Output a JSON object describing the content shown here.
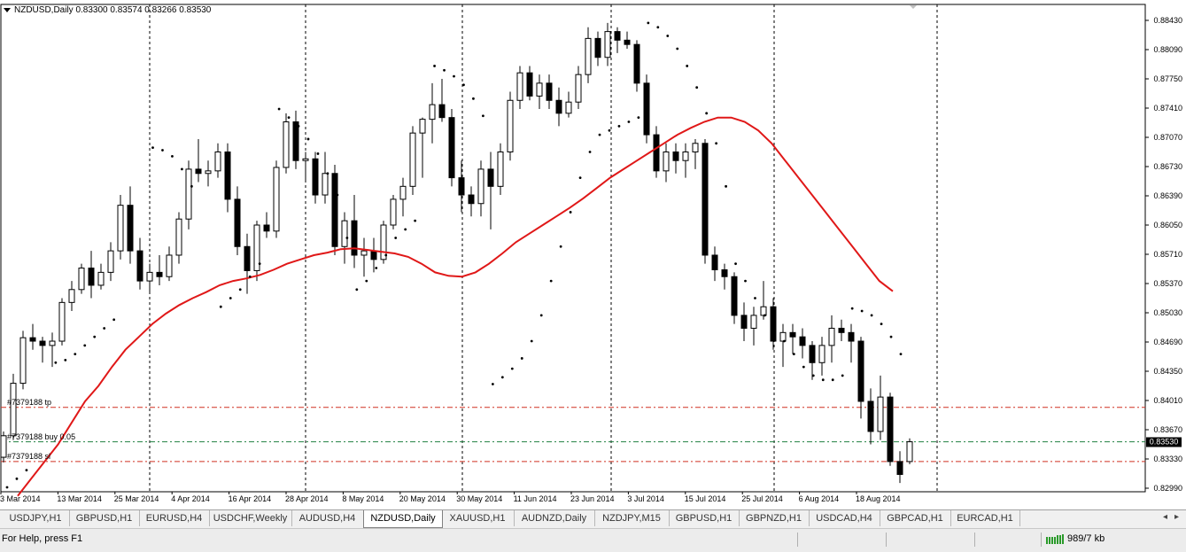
{
  "chart": {
    "symbol_title": "NZDUSD,Daily  0.83300 0.83574 0.83266 0.83530",
    "price_scale": [
      "0.88430",
      "0.88090",
      "0.87750",
      "0.87410",
      "0.87070",
      "0.86730",
      "0.86390",
      "0.86050",
      "0.85710",
      "0.85370",
      "0.85030",
      "0.84690",
      "0.84350",
      "0.84010",
      "0.83670",
      "0.83330",
      "0.82990"
    ],
    "current_price": "0.83530",
    "date_labels": [
      "3 Mar 2014",
      "13 Mar 2014",
      "25 Mar 2014",
      "4 Apr 2014",
      "16 Apr 2014",
      "28 Apr 2014",
      "8 May 2014",
      "20 May 2014",
      "30 May 2014",
      "11 Jun 2014",
      "23 Jun 2014",
      "3 Jul 2014",
      "15 Jul 2014",
      "25 Jul 2014",
      "6 Aug 2014",
      "18 Aug 2014"
    ],
    "order_lines": [
      {
        "label": "#7379188 tp",
        "price": 0.8393,
        "color": "#d03020"
      },
      {
        "label": "#7379188 buy 0.05",
        "price": 0.8353,
        "color": "#208040"
      },
      {
        "label": "#7379188 sl",
        "price": 0.833,
        "color": "#d03020"
      }
    ],
    "colors": {
      "ma": "#e01818",
      "sar": "#000000",
      "candle_bull": "#ffffff",
      "candle_bear": "#000000",
      "grid": "#000000"
    }
  },
  "chart_data": {
    "type": "candlestick",
    "title": "NZDUSD,Daily",
    "ylim": [
      0.8286,
      0.8456
    ],
    "y_scale_note_free": true,
    "ohlc": [
      [
        0.8335,
        0.8365,
        0.8329,
        0.836
      ],
      [
        0.836,
        0.8432,
        0.8355,
        0.8421
      ],
      [
        0.8421,
        0.8482,
        0.8414,
        0.8474
      ],
      [
        0.8474,
        0.849,
        0.846,
        0.847
      ],
      [
        0.847,
        0.8475,
        0.8445,
        0.8465
      ],
      [
        0.8465,
        0.848,
        0.844,
        0.847
      ],
      [
        0.847,
        0.852,
        0.8465,
        0.8515
      ],
      [
        0.8515,
        0.854,
        0.8505,
        0.853
      ],
      [
        0.853,
        0.856,
        0.8525,
        0.8555
      ],
      [
        0.8555,
        0.8575,
        0.852,
        0.8535
      ],
      [
        0.8535,
        0.856,
        0.853,
        0.855
      ],
      [
        0.855,
        0.8585,
        0.854,
        0.8575
      ],
      [
        0.8575,
        0.864,
        0.8565,
        0.8628
      ],
      [
        0.8628,
        0.865,
        0.856,
        0.8575
      ],
      [
        0.8575,
        0.859,
        0.853,
        0.854
      ],
      [
        0.854,
        0.856,
        0.8525,
        0.855
      ],
      [
        0.855,
        0.857,
        0.8535,
        0.8545
      ],
      [
        0.8545,
        0.858,
        0.854,
        0.857
      ],
      [
        0.857,
        0.862,
        0.856,
        0.8612
      ],
      [
        0.8612,
        0.868,
        0.86,
        0.867
      ],
      [
        0.867,
        0.8705,
        0.8655,
        0.8665
      ],
      [
        0.8665,
        0.868,
        0.865,
        0.8668
      ],
      [
        0.8668,
        0.87,
        0.866,
        0.869
      ],
      [
        0.869,
        0.87,
        0.862,
        0.8635
      ],
      [
        0.8635,
        0.865,
        0.857,
        0.858
      ],
      [
        0.858,
        0.8595,
        0.8525,
        0.8552
      ],
      [
        0.8552,
        0.861,
        0.854,
        0.8605
      ],
      [
        0.8605,
        0.862,
        0.859,
        0.8598
      ],
      [
        0.8598,
        0.868,
        0.859,
        0.8672
      ],
      [
        0.8672,
        0.8735,
        0.8665,
        0.8725
      ],
      [
        0.8725,
        0.8738,
        0.867,
        0.868
      ],
      [
        0.868,
        0.869,
        0.8655,
        0.8682
      ],
      [
        0.8682,
        0.869,
        0.863,
        0.864
      ],
      [
        0.864,
        0.869,
        0.863,
        0.8665
      ],
      [
        0.8665,
        0.8675,
        0.857,
        0.858
      ],
      [
        0.858,
        0.862,
        0.856,
        0.861
      ],
      [
        0.861,
        0.864,
        0.8555,
        0.857
      ],
      [
        0.857,
        0.859,
        0.8545,
        0.8575
      ],
      [
        0.8575,
        0.859,
        0.855,
        0.8565
      ],
      [
        0.8565,
        0.861,
        0.856,
        0.8605
      ],
      [
        0.8605,
        0.864,
        0.86,
        0.8635
      ],
      [
        0.8635,
        0.866,
        0.8615,
        0.865
      ],
      [
        0.865,
        0.872,
        0.864,
        0.8712
      ],
      [
        0.8712,
        0.873,
        0.866,
        0.8728
      ],
      [
        0.8728,
        0.877,
        0.87,
        0.8745
      ],
      [
        0.8745,
        0.8775,
        0.8725,
        0.873
      ],
      [
        0.873,
        0.874,
        0.865,
        0.866
      ],
      [
        0.866,
        0.868,
        0.862,
        0.864
      ],
      [
        0.864,
        0.865,
        0.8615,
        0.863
      ],
      [
        0.863,
        0.868,
        0.8615,
        0.867
      ],
      [
        0.867,
        0.869,
        0.86,
        0.865
      ],
      [
        0.865,
        0.87,
        0.864,
        0.869
      ],
      [
        0.869,
        0.876,
        0.868,
        0.875
      ],
      [
        0.875,
        0.879,
        0.874,
        0.8782
      ],
      [
        0.8782,
        0.879,
        0.875,
        0.8755
      ],
      [
        0.8755,
        0.878,
        0.874,
        0.877
      ],
      [
        0.877,
        0.878,
        0.874,
        0.875
      ],
      [
        0.875,
        0.8765,
        0.872,
        0.8735
      ],
      [
        0.8735,
        0.876,
        0.873,
        0.8748
      ],
      [
        0.8748,
        0.879,
        0.874,
        0.878
      ],
      [
        0.878,
        0.8835,
        0.877,
        0.8822
      ],
      [
        0.8822,
        0.883,
        0.879,
        0.88
      ],
      [
        0.88,
        0.884,
        0.879,
        0.883
      ],
      [
        0.883,
        0.8835,
        0.8805,
        0.882
      ],
      [
        0.882,
        0.883,
        0.881,
        0.8815
      ],
      [
        0.8815,
        0.882,
        0.876,
        0.877
      ],
      [
        0.877,
        0.878,
        0.87,
        0.871
      ],
      [
        0.871,
        0.872,
        0.866,
        0.8668
      ],
      [
        0.8668,
        0.87,
        0.8655,
        0.869
      ],
      [
        0.869,
        0.87,
        0.8665,
        0.868
      ],
      [
        0.868,
        0.87,
        0.866,
        0.869
      ],
      [
        0.869,
        0.8705,
        0.867,
        0.87
      ],
      [
        0.87,
        0.8705,
        0.856,
        0.857
      ],
      [
        0.857,
        0.858,
        0.854,
        0.8553
      ],
      [
        0.8553,
        0.856,
        0.853,
        0.8545
      ],
      [
        0.8545,
        0.855,
        0.849,
        0.85
      ],
      [
        0.85,
        0.8515,
        0.847,
        0.8485
      ],
      [
        0.8485,
        0.851,
        0.8465,
        0.85
      ],
      [
        0.85,
        0.854,
        0.8495,
        0.851
      ],
      [
        0.851,
        0.852,
        0.846,
        0.847
      ],
      [
        0.847,
        0.849,
        0.844,
        0.848
      ],
      [
        0.848,
        0.849,
        0.8455,
        0.8475
      ],
      [
        0.8475,
        0.8485,
        0.845,
        0.8465
      ],
      [
        0.8465,
        0.847,
        0.8425,
        0.8445
      ],
      [
        0.8445,
        0.8475,
        0.843,
        0.8465
      ],
      [
        0.8465,
        0.85,
        0.8445,
        0.8485
      ],
      [
        0.8485,
        0.8495,
        0.847,
        0.848
      ],
      [
        0.848,
        0.849,
        0.8445,
        0.847
      ],
      [
        0.847,
        0.8475,
        0.838,
        0.84
      ],
      [
        0.84,
        0.8415,
        0.835,
        0.8365
      ],
      [
        0.8365,
        0.843,
        0.8355,
        0.8405
      ],
      [
        0.8405,
        0.841,
        0.8325,
        0.833
      ],
      [
        0.833,
        0.8342,
        0.8305,
        0.8315
      ],
      [
        0.833,
        0.8357,
        0.8327,
        0.8353
      ]
    ],
    "ma": [
      0.829,
      0.831,
      0.833,
      0.835,
      0.8375,
      0.84,
      0.8418,
      0.844,
      0.846,
      0.8475,
      0.849,
      0.8502,
      0.8512,
      0.852,
      0.8527,
      0.8535,
      0.854,
      0.8543,
      0.8547,
      0.8553,
      0.856,
      0.8565,
      0.857,
      0.8573,
      0.8577,
      0.8578,
      0.8576,
      0.8574,
      0.8572,
      0.8568,
      0.856,
      0.855,
      0.8546,
      0.8545,
      0.855,
      0.856,
      0.8572,
      0.8585,
      0.8595,
      0.8605,
      0.8615,
      0.8625,
      0.8636,
      0.8648,
      0.866,
      0.867,
      0.868,
      0.869,
      0.87,
      0.871,
      0.8718,
      0.8725,
      0.873,
      0.873,
      0.8725,
      0.8715,
      0.87,
      0.868,
      0.866,
      0.864,
      0.862,
      0.86,
      0.858,
      0.856,
      0.854,
      0.8528
    ],
    "ma_start_index": 0,
    "sar": [
      [
        0,
        0.83
      ],
      [
        1,
        0.831
      ],
      [
        2,
        0.832
      ],
      [
        5,
        0.8445
      ],
      [
        6,
        0.8448
      ],
      [
        7,
        0.8455
      ],
      [
        8,
        0.8465
      ],
      [
        9,
        0.8475
      ],
      [
        10,
        0.8485
      ],
      [
        11,
        0.8495
      ],
      [
        15,
        0.8695
      ],
      [
        16,
        0.8692
      ],
      [
        17,
        0.8685
      ],
      [
        18,
        0.867
      ],
      [
        19,
        0.865
      ],
      [
        22,
        0.851
      ],
      [
        23,
        0.852
      ],
      [
        24,
        0.853
      ],
      [
        25,
        0.8545
      ],
      [
        26,
        0.856
      ],
      [
        28,
        0.874
      ],
      [
        29,
        0.873
      ],
      [
        30,
        0.872
      ],
      [
        31,
        0.8705
      ],
      [
        32,
        0.8688
      ],
      [
        33,
        0.8665
      ],
      [
        34,
        0.864
      ],
      [
        35,
        0.859
      ],
      [
        36,
        0.853
      ],
      [
        37,
        0.854
      ],
      [
        38,
        0.8555
      ],
      [
        39,
        0.857
      ],
      [
        40,
        0.859
      ],
      [
        41,
        0.86
      ],
      [
        42,
        0.861
      ],
      [
        44,
        0.879
      ],
      [
        45,
        0.8785
      ],
      [
        46,
        0.8778
      ],
      [
        47,
        0.8768
      ],
      [
        48,
        0.8752
      ],
      [
        49,
        0.8732
      ],
      [
        50,
        0.842
      ],
      [
        51,
        0.8428
      ],
      [
        52,
        0.8438
      ],
      [
        53,
        0.845
      ],
      [
        54,
        0.847
      ],
      [
        55,
        0.85
      ],
      [
        56,
        0.854
      ],
      [
        57,
        0.858
      ],
      [
        58,
        0.862
      ],
      [
        59,
        0.866
      ],
      [
        60,
        0.869
      ],
      [
        61,
        0.871
      ],
      [
        62,
        0.8715
      ],
      [
        63,
        0.872
      ],
      [
        64,
        0.8725
      ],
      [
        65,
        0.873
      ],
      [
        66,
        0.884
      ],
      [
        67,
        0.8835
      ],
      [
        68,
        0.8825
      ],
      [
        69,
        0.881
      ],
      [
        70,
        0.879
      ],
      [
        71,
        0.8765
      ],
      [
        72,
        0.8735
      ],
      [
        73,
        0.87
      ],
      [
        74,
        0.865
      ],
      [
        75,
        0.856
      ],
      [
        76,
        0.854
      ],
      [
        77,
        0.852
      ],
      [
        78,
        0.85
      ],
      [
        79,
        0.8485
      ],
      [
        80,
        0.847
      ],
      [
        81,
        0.8455
      ],
      [
        82,
        0.844
      ],
      [
        83,
        0.843
      ],
      [
        84,
        0.8425
      ],
      [
        85,
        0.8425
      ],
      [
        86,
        0.843
      ],
      [
        87,
        0.8508
      ],
      [
        88,
        0.8505
      ],
      [
        89,
        0.85
      ],
      [
        90,
        0.849
      ],
      [
        91,
        0.8475
      ],
      [
        92,
        0.8455
      ]
    ]
  },
  "tabs": {
    "items": [
      "USDJPY,H1",
      "GBPUSD,H1",
      "EURUSD,H4",
      "USDCHF,Weekly",
      "AUDUSD,H4",
      "NZDUSD,Daily",
      "XAUUSD,H1",
      "AUDNZD,Daily",
      "NZDJPY,M15",
      "GBPUSD,H1",
      "GBPNZD,H1",
      "USDCAD,H4",
      "GBPCAD,H1",
      "EURCAD,H1"
    ],
    "active": "NZDUSD,Daily",
    "scroll_left": "◂",
    "scroll_right": "▸"
  },
  "status": {
    "help": "For Help, press F1",
    "traffic": "989/7 kb"
  }
}
